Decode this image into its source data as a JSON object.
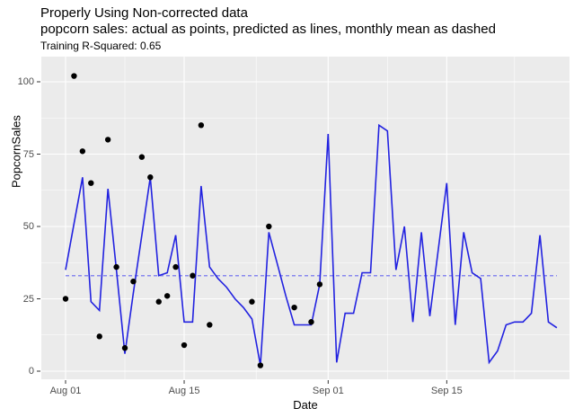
{
  "chart_data": {
    "type": "line",
    "title": "Properly Using Non-corrected data",
    "title_line2": "popcorn sales: actual as points, predicted as lines, monthly mean as dashed",
    "subtitle": "Training R-Squared: 0.65",
    "xlabel": "Date",
    "ylabel": "PopcornSales",
    "x_start_date": "Aug 01",
    "x_ticks": [
      {
        "label": "Aug 01",
        "day": 0
      },
      {
        "label": "Aug 15",
        "day": 14
      },
      {
        "label": "Sep 01",
        "day": 31
      },
      {
        "label": "Sep 15",
        "day": 45
      }
    ],
    "x_minor_days": [
      7,
      22.5,
      38,
      53
    ],
    "y_ticks": [
      0,
      25,
      50,
      75,
      100
    ],
    "y_minor": [
      12.5,
      37.5,
      62.5,
      87.5
    ],
    "xlim_days": [
      -2.86,
      59.5
    ],
    "ylim": [
      -2.8,
      108.7
    ],
    "grid": true,
    "legend_position": "none",
    "panel_bg": "#ebebeb",
    "grid_color": "#ffffff",
    "axis_text_color": "#4d4d4d",
    "series": [
      {
        "name": "actual (points)",
        "type": "scatter",
        "color": "#000000",
        "point_radius": 3.2,
        "points": [
          {
            "date": "Aug 01",
            "day": 0,
            "value": 25
          },
          {
            "date": "Aug 02",
            "day": 1,
            "value": 102
          },
          {
            "date": "Aug 03",
            "day": 2,
            "value": 76
          },
          {
            "date": "Aug 04",
            "day": 3,
            "value": 65
          },
          {
            "date": "Aug 05",
            "day": 4,
            "value": 12
          },
          {
            "date": "Aug 06",
            "day": 5,
            "value": 80
          },
          {
            "date": "Aug 07",
            "day": 6,
            "value": 36
          },
          {
            "date": "Aug 08",
            "day": 7,
            "value": 8
          },
          {
            "date": "Aug 09",
            "day": 8,
            "value": 31
          },
          {
            "date": "Aug 10",
            "day": 9,
            "value": 74
          },
          {
            "date": "Aug 11",
            "day": 10,
            "value": 67
          },
          {
            "date": "Aug 12",
            "day": 11,
            "value": 24
          },
          {
            "date": "Aug 13",
            "day": 12,
            "value": 26
          },
          {
            "date": "Aug 14",
            "day": 13,
            "value": 36
          },
          {
            "date": "Aug 15",
            "day": 14,
            "value": 9
          },
          {
            "date": "Aug 16",
            "day": 15,
            "value": 33
          },
          {
            "date": "Aug 17",
            "day": 16,
            "value": 85
          },
          {
            "date": "Aug 18",
            "day": 17,
            "value": 16
          },
          {
            "date": "Aug 23",
            "day": 22,
            "value": 24
          },
          {
            "date": "Aug 24",
            "day": 23,
            "value": 2
          },
          {
            "date": "Aug 25",
            "day": 24,
            "value": 50
          },
          {
            "date": "Aug 28",
            "day": 27,
            "value": 22
          },
          {
            "date": "Aug 30",
            "day": 29,
            "value": 17
          },
          {
            "date": "Aug 31",
            "day": 30,
            "value": 30
          }
        ]
      },
      {
        "name": "predicted (line)",
        "type": "line",
        "color": "#2222e0",
        "line_width": 1.6,
        "start_day": 0,
        "values_by_day": [
          35,
          51,
          67,
          24,
          21,
          63,
          35,
          6,
          27,
          47,
          67,
          33,
          34,
          47,
          17,
          17,
          64,
          36,
          32,
          29,
          25,
          22,
          18,
          2,
          48,
          37,
          26,
          16,
          16,
          16,
          30,
          82,
          3,
          20,
          20,
          34,
          34,
          85,
          83,
          35,
          50,
          17,
          48,
          19,
          42,
          65,
          16,
          48,
          34,
          32,
          3,
          7,
          16,
          17,
          17,
          20,
          47,
          17,
          15
        ]
      },
      {
        "name": "monthly mean (dashed)",
        "type": "hline",
        "color": "#8888ee",
        "line_width": 1.4,
        "dash": "4 3",
        "value": 33,
        "span_days": [
          0,
          58
        ]
      }
    ]
  }
}
